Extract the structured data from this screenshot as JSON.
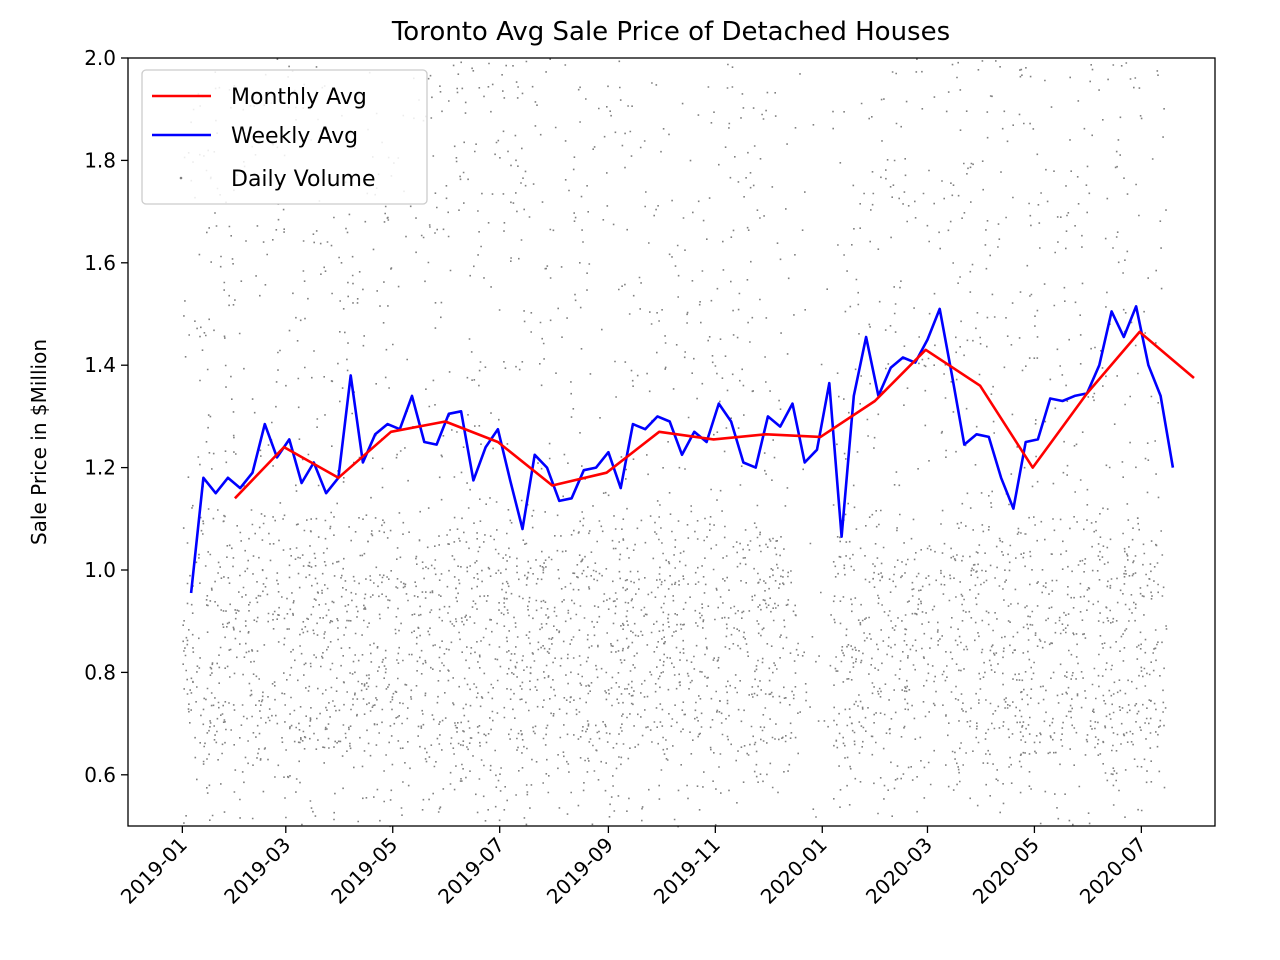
{
  "chart_data": {
    "type": "line",
    "title": "Toronto Avg Sale Price of Detached Houses",
    "xlabel": "",
    "ylabel": "Sale Price in $Million",
    "ylim": [
      0.5,
      2.0
    ],
    "xlim": [
      "2018-12-01",
      "2020-08-12"
    ],
    "y_ticks": [
      0.6,
      0.8,
      1.0,
      1.2,
      1.4,
      1.6,
      1.8,
      2.0
    ],
    "y_tick_labels": [
      "0.6",
      "0.8",
      "1.0",
      "1.2",
      "1.4",
      "1.6",
      "1.8",
      "2.0"
    ],
    "x_ticks": [
      "2019-01-01",
      "2019-03-01",
      "2019-05-01",
      "2019-07-01",
      "2019-09-01",
      "2019-11-01",
      "2020-01-01",
      "2020-03-01",
      "2020-05-01",
      "2020-07-01"
    ],
    "x_tick_labels": [
      "2019-01",
      "2019-03",
      "2019-05",
      "2019-07",
      "2019-09",
      "2019-11",
      "2020-01",
      "2020-03",
      "2020-05",
      "2020-07"
    ],
    "x_tick_rotation": 45,
    "grid": false,
    "legend_position": "top-left",
    "series": [
      {
        "name": "Monthly Avg",
        "color": "#ff0000",
        "x": [
          "2019-01-31",
          "2019-02-28",
          "2019-03-31",
          "2019-04-30",
          "2019-05-31",
          "2019-06-30",
          "2019-07-31",
          "2019-08-31",
          "2019-09-30",
          "2019-10-31",
          "2019-11-30",
          "2019-12-31",
          "2020-01-31",
          "2020-02-29",
          "2020-03-31",
          "2020-04-30",
          "2020-05-31",
          "2020-06-30",
          "2020-07-31"
        ],
        "y": [
          1.14,
          1.24,
          1.18,
          1.27,
          1.29,
          1.25,
          1.165,
          1.19,
          1.27,
          1.255,
          1.265,
          1.26,
          1.33,
          1.43,
          1.36,
          1.2,
          1.345,
          1.465,
          1.375
        ]
      },
      {
        "name": "Weekly Avg",
        "color": "#0000ff",
        "x": [
          "2019-01-06",
          "2019-01-13",
          "2019-01-20",
          "2019-01-27",
          "2019-02-03",
          "2019-02-10",
          "2019-02-17",
          "2019-02-24",
          "2019-03-03",
          "2019-03-10",
          "2019-03-17",
          "2019-03-24",
          "2019-03-31",
          "2019-04-07",
          "2019-04-14",
          "2019-04-21",
          "2019-04-28",
          "2019-05-05",
          "2019-05-12",
          "2019-05-19",
          "2019-05-26",
          "2019-06-02",
          "2019-06-09",
          "2019-06-16",
          "2019-06-23",
          "2019-06-30",
          "2019-07-07",
          "2019-07-14",
          "2019-07-21",
          "2019-07-28",
          "2019-08-04",
          "2019-08-11",
          "2019-08-18",
          "2019-08-25",
          "2019-09-01",
          "2019-09-08",
          "2019-09-15",
          "2019-09-22",
          "2019-09-29",
          "2019-10-06",
          "2019-10-13",
          "2019-10-20",
          "2019-10-27",
          "2019-11-03",
          "2019-11-10",
          "2019-11-17",
          "2019-11-24",
          "2019-12-01",
          "2019-12-08",
          "2019-12-15",
          "2019-12-22",
          "2019-12-29",
          "2020-01-05",
          "2020-01-12",
          "2020-01-19",
          "2020-01-26",
          "2020-02-02",
          "2020-02-09",
          "2020-02-16",
          "2020-02-23",
          "2020-03-01",
          "2020-03-08",
          "2020-03-15",
          "2020-03-22",
          "2020-03-29",
          "2020-04-05",
          "2020-04-12",
          "2020-04-19",
          "2020-04-26",
          "2020-05-03",
          "2020-05-10",
          "2020-05-17",
          "2020-05-24",
          "2020-05-31",
          "2020-06-07",
          "2020-06-14",
          "2020-06-21",
          "2020-06-28",
          "2020-07-05",
          "2020-07-12",
          "2020-07-19"
        ],
        "y": [
          0.955,
          1.18,
          1.15,
          1.18,
          1.16,
          1.19,
          1.285,
          1.22,
          1.255,
          1.17,
          1.21,
          1.15,
          1.18,
          1.38,
          1.21,
          1.265,
          1.285,
          1.275,
          1.34,
          1.25,
          1.245,
          1.305,
          1.31,
          1.175,
          1.24,
          1.275,
          1.175,
          1.08,
          1.225,
          1.2,
          1.135,
          1.14,
          1.195,
          1.2,
          1.23,
          1.16,
          1.285,
          1.275,
          1.3,
          1.29,
          1.225,
          1.27,
          1.25,
          1.325,
          1.29,
          1.21,
          1.2,
          1.3,
          1.28,
          1.325,
          1.21,
          1.235,
          1.365,
          1.065,
          1.34,
          1.455,
          1.34,
          1.395,
          1.415,
          1.405,
          1.45,
          1.51,
          1.38,
          1.245,
          1.265,
          1.26,
          1.18,
          1.12,
          1.25,
          1.255,
          1.335,
          1.33,
          1.34,
          1.345,
          1.4,
          1.505,
          1.455,
          1.515,
          1.4,
          1.34,
          1.2
        ]
      },
      {
        "name": "Daily Volume",
        "color": "#808080",
        "marker": "point",
        "x_range": [
          "2019-01-01",
          "2020-07-15"
        ],
        "y_range": [
          0.5,
          2.0
        ]
      }
    ]
  }
}
